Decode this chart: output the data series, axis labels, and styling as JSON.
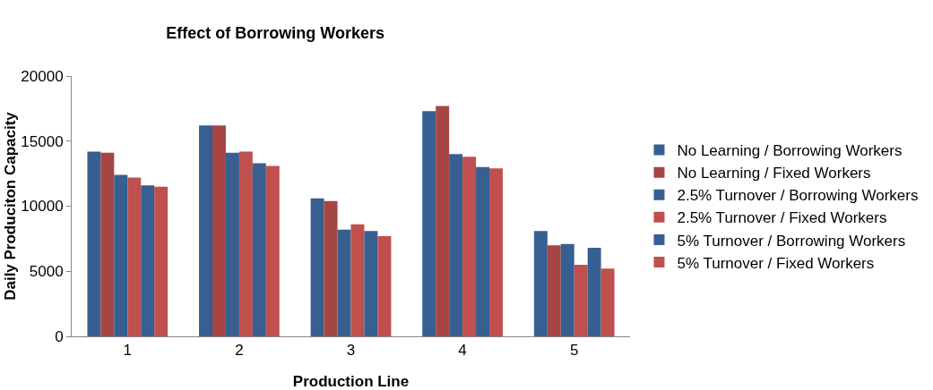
{
  "chart_data": {
    "type": "bar",
    "title": "Effect of Borrowing Workers",
    "xlabel": "Production Line",
    "ylabel": "Daily Produciton Capacity",
    "categories": [
      "1",
      "2",
      "3",
      "4",
      "5"
    ],
    "series": [
      {
        "name": "No Learning / Borrowing Workers",
        "color": "#375f91",
        "values": [
          14200,
          16200,
          10600,
          17300,
          8100
        ]
      },
      {
        "name": "No Learning / Fixed Workers",
        "color": "#a54644",
        "values": [
          14100,
          16200,
          10400,
          17700,
          7000
        ]
      },
      {
        "name": "2.5% Turnover / Borrowing Workers",
        "color": "#375f91",
        "values": [
          12400,
          14100,
          8200,
          14000,
          7100
        ]
      },
      {
        "name": "2.5% Turnover / Fixed Workers",
        "color": "#c0504d",
        "values": [
          12200,
          14200,
          8600,
          13800,
          5500
        ]
      },
      {
        "name": "5% Turnover / Borrowing Workers",
        "color": "#375f91",
        "values": [
          11600,
          13300,
          8100,
          13000,
          6800
        ]
      },
      {
        "name": "5% Turnover / Fixed Workers",
        "color": "#c0504d",
        "values": [
          11500,
          13100,
          7700,
          12900,
          5200
        ]
      }
    ],
    "ylim": [
      0,
      20000
    ],
    "yticks": [
      0,
      5000,
      10000,
      15000,
      20000
    ],
    "grid": false,
    "legend": "right"
  }
}
